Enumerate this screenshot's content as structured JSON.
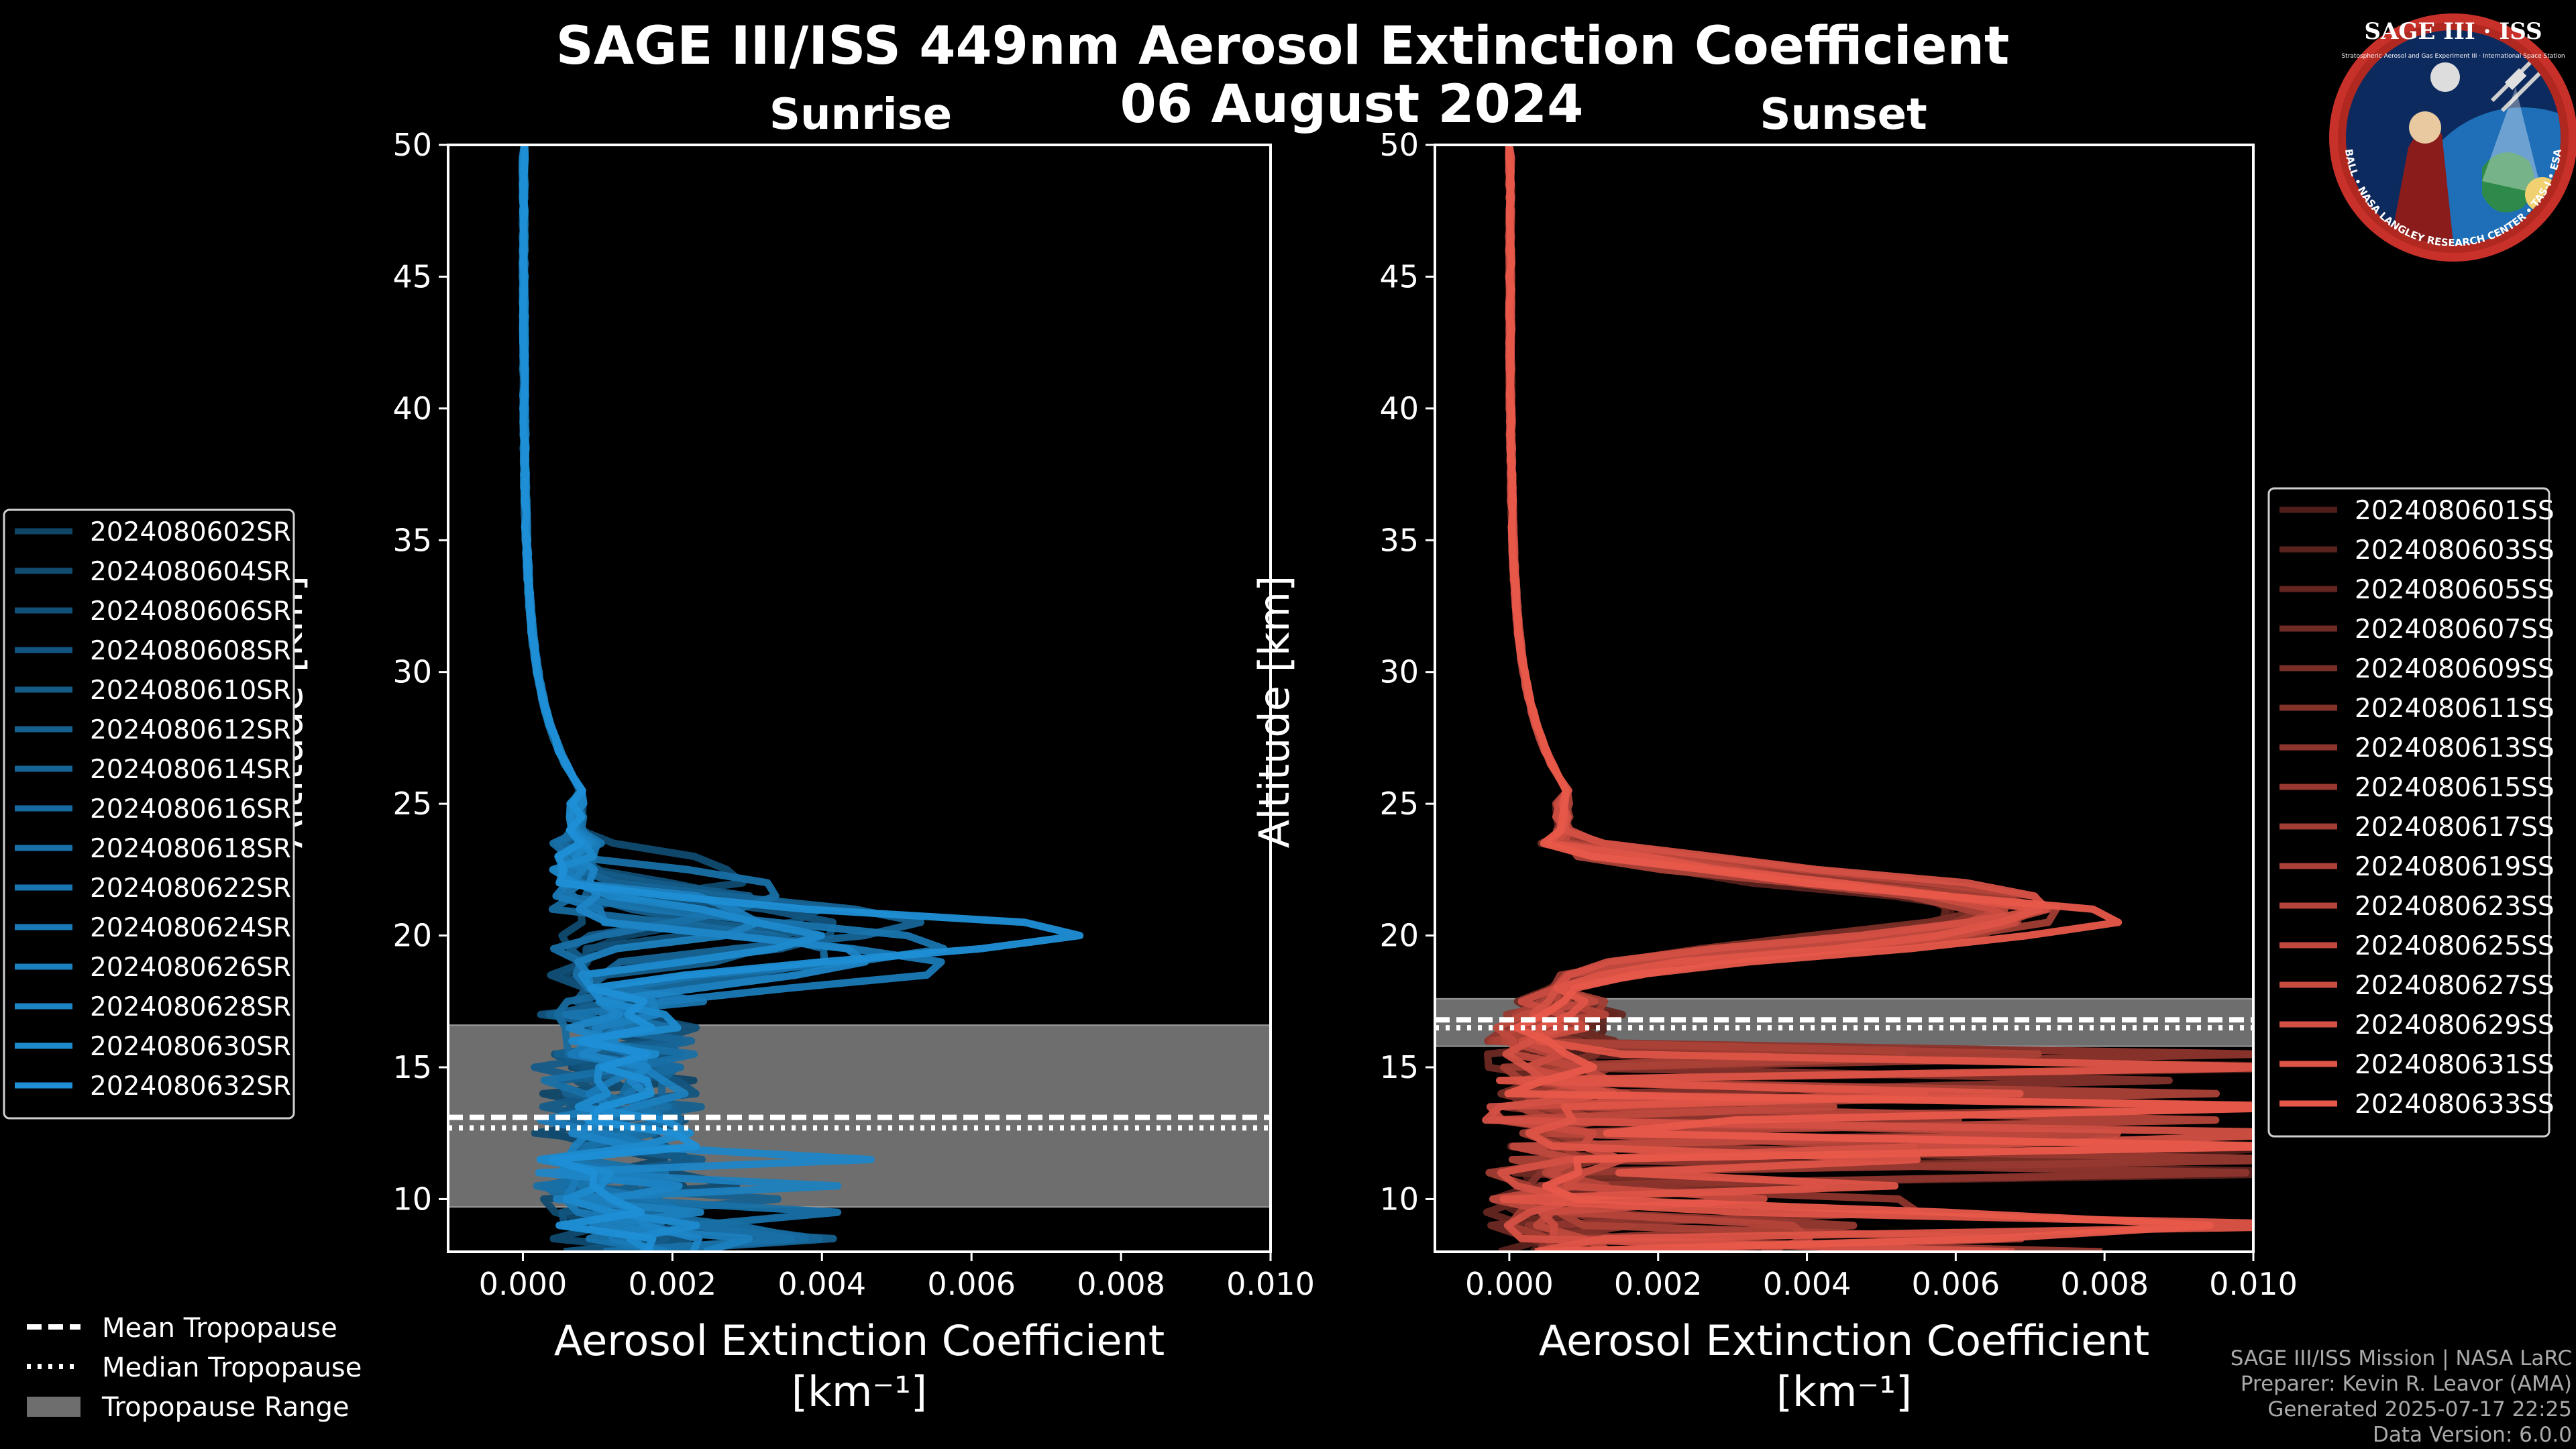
{
  "title_line1": "SAGE III/ISS 449nm Aerosol Extinction Coefficient",
  "title_line2": "06 August 2024",
  "logo": {
    "top_text": "SAGE III · ISS",
    "ring_text": "BALL • NASA LANGLEY RESEARCH CENTER • TAS-I • ESA",
    "inner_text": "Stratospheric Aerosol and Gas Experiment III · International Space Station"
  },
  "tropopause_legend": {
    "mean": "Mean Tropopause",
    "median": "Median Tropopause",
    "range": "Tropopause Range"
  },
  "credits": {
    "line1": "SAGE III/ISS Mission | NASA LaRC",
    "line2": "Preparer: Kevin R. Leavor (AMA)",
    "line3": "Generated 2025-07-17 22:25",
    "line4": "Data Version: 6.0.0"
  },
  "chart_data": [
    {
      "type": "line",
      "title": "Sunrise",
      "xlabel": "Aerosol Extinction Coefficient",
      "xunit": "[km⁻¹]",
      "ylabel": "Altitude [km]",
      "xlim": [
        -0.001,
        0.01
      ],
      "ylim": [
        8,
        50
      ],
      "xticks": [
        "0.000",
        "0.002",
        "0.004",
        "0.006",
        "0.008",
        "0.010"
      ],
      "xtick_values": [
        0,
        0.002,
        0.004,
        0.006,
        0.008,
        0.01
      ],
      "yticks": [
        10,
        15,
        20,
        25,
        30,
        35,
        40,
        45,
        50
      ],
      "tropopause": {
        "mean": 13.1,
        "median": 12.7,
        "range": [
          9.7,
          16.6
        ]
      },
      "base_color": "#1f8fd6",
      "series": [
        {
          "name": "2024080602SR",
          "peak_value": 0.0023,
          "peak_alt": 20.8
        },
        {
          "name": "2024080604SR",
          "peak_value": 0.0028,
          "peak_alt": 22.3
        },
        {
          "name": "2024080606SR",
          "peak_value": 0.004,
          "peak_alt": 20.9
        },
        {
          "name": "2024080608SR",
          "peak_value": 0.0045,
          "peak_alt": 20.2
        },
        {
          "name": "2024080610SR",
          "peak_value": 0.003,
          "peak_alt": 21.2
        },
        {
          "name": "2024080612SR",
          "peak_value": 0.0037,
          "peak_alt": 19.8
        },
        {
          "name": "2024080614SR",
          "peak_value": 0.005,
          "peak_alt": 20.5
        },
        {
          "name": "2024080616SR",
          "peak_value": 0.0042,
          "peak_alt": 19.3
        },
        {
          "name": "2024080618SR",
          "peak_value": 0.0035,
          "peak_alt": 21.5
        },
        {
          "name": "2024080622SR",
          "peak_value": 0.0055,
          "peak_alt": 19.6
        },
        {
          "name": "2024080624SR",
          "peak_value": 0.0056,
          "peak_alt": 18.9
        },
        {
          "name": "2024080626SR",
          "peak_value": 0.0033,
          "peak_alt": 20.6
        },
        {
          "name": "2024080628SR",
          "peak_value": 0.0046,
          "peak_alt": 19.1
        },
        {
          "name": "2024080630SR",
          "peak_value": 0.004,
          "peak_alt": 20.0
        },
        {
          "name": "2024080632SR",
          "peak_value": 0.0075,
          "peak_alt": 20.0
        }
      ]
    },
    {
      "type": "line",
      "title": "Sunset",
      "xlabel": "Aerosol Extinction Coefficient",
      "xunit": "[km⁻¹]",
      "ylabel": "Altitude [km]",
      "xlim": [
        -0.001,
        0.01
      ],
      "ylim": [
        8,
        50
      ],
      "xticks": [
        "0.000",
        "0.002",
        "0.004",
        "0.006",
        "0.008",
        "0.010"
      ],
      "xtick_values": [
        0,
        0.002,
        0.004,
        0.006,
        0.008,
        0.01
      ],
      "yticks": [
        10,
        15,
        20,
        25,
        30,
        35,
        40,
        45,
        50
      ],
      "tropopause": {
        "mean": 16.8,
        "median": 16.5,
        "range": [
          15.8,
          17.6
        ]
      },
      "base_color": "#e8584a",
      "series": [
        {
          "name": "2024080601SS",
          "peak_value": 0.006,
          "peak_alt": 20.9
        },
        {
          "name": "2024080603SS",
          "peak_value": 0.0065,
          "peak_alt": 20.6
        },
        {
          "name": "2024080605SS",
          "peak_value": 0.0062,
          "peak_alt": 21.0
        },
        {
          "name": "2024080607SS",
          "peak_value": 0.0068,
          "peak_alt": 20.8
        },
        {
          "name": "2024080609SS",
          "peak_value": 0.0064,
          "peak_alt": 21.1
        },
        {
          "name": "2024080611SS",
          "peak_value": 0.007,
          "peak_alt": 20.7
        },
        {
          "name": "2024080613SS",
          "peak_value": 0.0066,
          "peak_alt": 20.9
        },
        {
          "name": "2024080615SS",
          "peak_value": 0.0069,
          "peak_alt": 21.0
        },
        {
          "name": "2024080617SS",
          "peak_value": 0.0072,
          "peak_alt": 20.8
        },
        {
          "name": "2024080619SS",
          "peak_value": 0.0067,
          "peak_alt": 20.6
        },
        {
          "name": "2024080623SS",
          "peak_value": 0.0073,
          "peak_alt": 21.1
        },
        {
          "name": "2024080625SS",
          "peak_value": 0.0065,
          "peak_alt": 20.9
        },
        {
          "name": "2024080627SS",
          "peak_value": 0.007,
          "peak_alt": 20.7
        },
        {
          "name": "2024080629SS",
          "peak_value": 0.0074,
          "peak_alt": 21.2
        },
        {
          "name": "2024080631SS",
          "peak_value": 0.0071,
          "peak_alt": 20.8
        },
        {
          "name": "2024080633SS",
          "peak_value": 0.0079,
          "peak_alt": 20.6
        }
      ]
    }
  ]
}
